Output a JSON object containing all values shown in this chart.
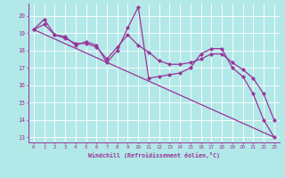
{
  "xlabel": "Windchill (Refroidissement éolien,°C)",
  "bg_color": "#b3e8e8",
  "line_color": "#993399",
  "grid_color": "#ffffff",
  "xlim": [
    -0.5,
    23.5
  ],
  "ylim": [
    12.7,
    20.7
  ],
  "yticks": [
    13,
    14,
    15,
    16,
    17,
    18,
    19,
    20
  ],
  "xticks": [
    0,
    1,
    2,
    3,
    4,
    5,
    6,
    7,
    8,
    9,
    10,
    11,
    12,
    13,
    14,
    15,
    16,
    17,
    18,
    19,
    20,
    21,
    22,
    23
  ],
  "lines": [
    {
      "x": [
        0,
        1,
        2,
        3,
        4,
        5,
        6,
        7,
        8,
        9,
        10,
        11,
        12,
        13,
        14,
        15,
        16,
        17,
        18,
        19,
        20,
        21,
        22,
        23
      ],
      "y": [
        19.2,
        19.8,
        18.9,
        18.8,
        18.3,
        18.5,
        18.3,
        17.3,
        18.0,
        19.3,
        20.5,
        16.4,
        16.5,
        16.6,
        16.7,
        17.0,
        17.8,
        18.1,
        18.1,
        17.0,
        16.5,
        15.5,
        14.0,
        13.0
      ],
      "marker": true
    },
    {
      "x": [
        0,
        1,
        2,
        3,
        4,
        5,
        6,
        7,
        8,
        9,
        10,
        11,
        12,
        13,
        14,
        15,
        16,
        17,
        18,
        19,
        20,
        21,
        22,
        23
      ],
      "y": [
        19.2,
        19.5,
        18.9,
        18.7,
        18.4,
        18.4,
        18.2,
        17.5,
        18.2,
        18.9,
        18.3,
        17.9,
        17.4,
        17.2,
        17.2,
        17.3,
        17.5,
        17.8,
        17.8,
        17.3,
        16.9,
        16.4,
        15.5,
        14.0
      ],
      "marker": true
    },
    {
      "x": [
        0,
        23
      ],
      "y": [
        19.2,
        13.0
      ],
      "marker": false
    }
  ]
}
